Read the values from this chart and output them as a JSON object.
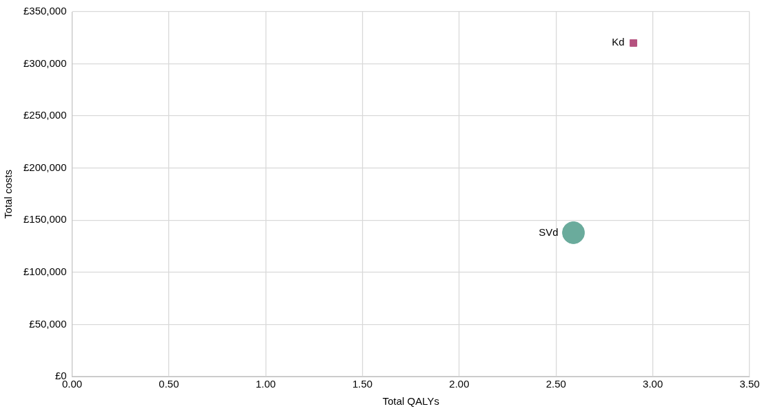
{
  "chart_data": {
    "type": "scatter",
    "xlabel": "Total QALYs",
    "ylabel": "Total costs",
    "series": [
      {
        "name": "SVd",
        "color": "#6aab9c",
        "marker": "circle",
        "x": [
          2.59
        ],
        "values": [
          138000
        ]
      },
      {
        "name": "Kd",
        "color": "#b5527f",
        "marker": "square",
        "x": [
          2.9
        ],
        "values": [
          320000
        ]
      }
    ],
    "xlim": [
      0,
      3.5
    ],
    "xticks": [
      {
        "value": 0,
        "label": "0.00"
      },
      {
        "value": 0.5,
        "label": "0.50"
      },
      {
        "value": 1,
        "label": "1.00"
      },
      {
        "value": 1.5,
        "label": "1.50"
      },
      {
        "value": 2,
        "label": "2.00"
      },
      {
        "value": 2.5,
        "label": "2.50"
      },
      {
        "value": 3,
        "label": "3.00"
      },
      {
        "value": 3.5,
        "label": "3.50"
      }
    ],
    "ylim": [
      0,
      350000
    ],
    "yticks": [
      {
        "value": 0,
        "label": "£0"
      },
      {
        "value": 50000,
        "label": "£50,000"
      },
      {
        "value": 100000,
        "label": "£100,000"
      },
      {
        "value": 150000,
        "label": "£150,000"
      },
      {
        "value": 200000,
        "label": "£200,000"
      },
      {
        "value": 250000,
        "label": "£250,000"
      },
      {
        "value": 300000,
        "label": "£300,000"
      },
      {
        "value": 350000,
        "label": "£350,000"
      }
    ],
    "grid": true,
    "legend": false
  }
}
